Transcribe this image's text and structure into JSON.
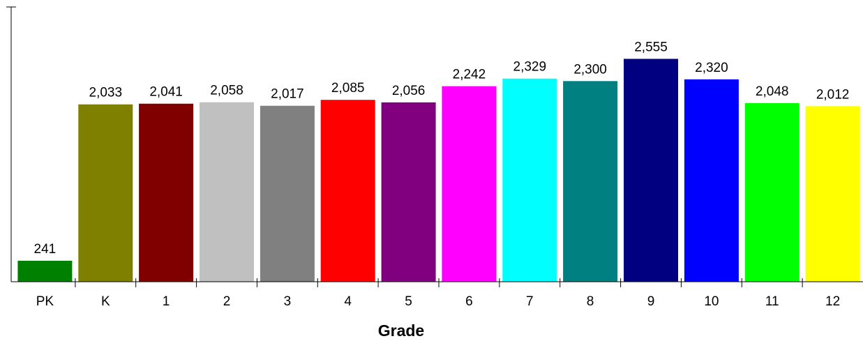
{
  "chart_data": {
    "type": "bar",
    "title": "",
    "xlabel": "Grade",
    "ylabel": "",
    "ylim": [
      0,
      3150
    ],
    "grid": false,
    "legend": "none",
    "categories": [
      "PK",
      "K",
      "1",
      "2",
      "3",
      "4",
      "5",
      "6",
      "7",
      "8",
      "9",
      "10",
      "11",
      "12"
    ],
    "values": [
      241,
      2033,
      2041,
      2058,
      2017,
      2085,
      2056,
      2242,
      2329,
      2300,
      2555,
      2320,
      2048,
      2012
    ],
    "data_labels": [
      "241",
      "2,033",
      "2,041",
      "2,058",
      "2,017",
      "2,085",
      "2,056",
      "2,242",
      "2,329",
      "2,300",
      "2,555",
      "2,320",
      "2,048",
      "2,012"
    ],
    "colors": [
      "#008000",
      "#808000",
      "#800000",
      "#C0C0C0",
      "#808080",
      "#FF0000",
      "#800080",
      "#FF00FF",
      "#00FFFF",
      "#008080",
      "#000080",
      "#0000FF",
      "#00FF00",
      "#FFFF00"
    ]
  }
}
